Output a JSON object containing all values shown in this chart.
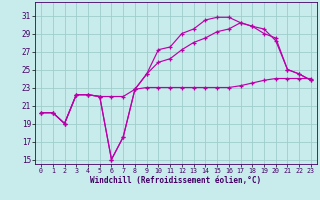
{
  "xlabel": "Windchill (Refroidissement éolien,°C)",
  "background_color": "#c8ecec",
  "grid_color": "#a0cccc",
  "line_color": "#bb00aa",
  "x_ticks": [
    0,
    1,
    2,
    3,
    4,
    5,
    6,
    7,
    8,
    9,
    10,
    11,
    12,
    13,
    14,
    15,
    16,
    17,
    18,
    19,
    20,
    21,
    22,
    23
  ],
  "y_ticks": [
    15,
    17,
    19,
    21,
    23,
    25,
    27,
    29,
    31
  ],
  "xlim": [
    -0.5,
    23.5
  ],
  "ylim": [
    14.5,
    32.5
  ],
  "series": [
    {
      "x": [
        0,
        1,
        2,
        3,
        4,
        5,
        6,
        7,
        8,
        9,
        10,
        11,
        12,
        13,
        14,
        15,
        16,
        17,
        18,
        19,
        20,
        21,
        22,
        23
      ],
      "y": [
        20.2,
        20.2,
        19.0,
        22.2,
        22.2,
        22.0,
        15.0,
        17.5,
        22.8,
        24.5,
        27.2,
        27.5,
        29.0,
        29.5,
        30.5,
        30.8,
        30.8,
        30.2,
        29.8,
        29.5,
        28.2,
        25.0,
        24.5,
        23.8
      ]
    },
    {
      "x": [
        0,
        1,
        2,
        3,
        4,
        5,
        6,
        7,
        8,
        9,
        10,
        11,
        12,
        13,
        14,
        15,
        16,
        17,
        18,
        19,
        20,
        21,
        22,
        23
      ],
      "y": [
        20.2,
        20.2,
        19.0,
        22.2,
        22.2,
        22.0,
        22.0,
        22.0,
        22.8,
        23.0,
        23.0,
        23.0,
        23.0,
        23.0,
        23.0,
        23.0,
        23.0,
        23.2,
        23.5,
        23.8,
        24.0,
        24.0,
        24.0,
        24.0
      ]
    },
    {
      "x": [
        0,
        1,
        2,
        3,
        4,
        5,
        6,
        7,
        8,
        9,
        10,
        11,
        12,
        13,
        14,
        15,
        16,
        17,
        18,
        19,
        20,
        21,
        22,
        23
      ],
      "y": [
        20.2,
        20.2,
        19.0,
        22.2,
        22.2,
        22.0,
        15.0,
        17.5,
        22.8,
        24.5,
        25.8,
        26.2,
        27.2,
        28.0,
        28.5,
        29.2,
        29.5,
        30.2,
        29.8,
        29.0,
        28.5,
        25.0,
        24.5,
        23.8
      ]
    }
  ]
}
